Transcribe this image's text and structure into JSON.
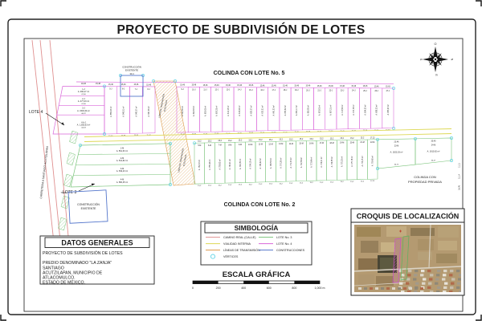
{
  "title": "PROYECTO DE SUBDIVISIÓN DE LOTES",
  "colors": {
    "magenta": "#d966d9",
    "green": "#7bc47b",
    "yellow": "#ddd855",
    "red_road": "#e09090",
    "orange": "#dd9a4a",
    "blue": "#5577cc",
    "cyan": "#66d5e6",
    "ink": "#1a1a1a"
  },
  "compass": {
    "top": "O",
    "right": "N",
    "bottom": "E",
    "left": "S"
  },
  "plan": {
    "colinda_top": "COLINDA CON LOTE No. 5",
    "colinda_bottom": "COLINDA CON LOTE No. 2",
    "colinda_right_1": "COLINDA CON",
    "colinda_right_2": "PROPIEDAD PRIVADA",
    "lote4_label": "LOTE 4",
    "lote3_label": "LOTE 3",
    "construction_line_1": "CONSTRUCCIÓN",
    "construction_line_2": "EXISTENTE",
    "road_label": "CARRETERA A SANTIAGO ACUTZILAPAN",
    "transmission_lines": [
      "LÍNEA DE TRANSMISIÓN",
      "ELÉCTRICA"
    ],
    "dim_74": "74,20",
    "dim_30": "30,4",
    "top_dims": [
      "18,26",
      "15,48"
    ],
    "right_dims": [
      "11,11",
      "11,14",
      "16,76"
    ],
    "j_left": [
      {
        "id": "1-J",
        "area": "A. 466,27 m²",
        "dim": "47,06"
      },
      {
        "id": "2-J",
        "area": "A. 477,03 m²",
        "dim": "47,06"
      },
      {
        "id": "3-J",
        "area": "A. 1503,34 m²",
        "dim": "46,97"
      },
      {
        "id": "4 A-J",
        "area": "A. 1,553,63 m²",
        "dim": "44,03"
      }
    ],
    "j_lots": [
      {
        "id": "5-J",
        "w": "15,46",
        "area": "A. 856,23 m²"
      },
      {
        "id": "6-J",
        "w": "15,46",
        "area": "A. 849,21 m²"
      },
      {
        "id": "7-J",
        "w": "15,46",
        "area": "A. 843,27 m²"
      },
      {
        "id": "8-J",
        "w": "15,46",
        "area": "A. 847,36 m²"
      },
      {
        "id": "9-J",
        "w": "15,46",
        "area": "A. 599,58 m²"
      },
      {
        "id": "10-J",
        "w": "15,46",
        "area": "A. 602,63 m²"
      },
      {
        "id": "11-J",
        "w": "15,46",
        "area": "A. 605,62 m²"
      },
      {
        "id": "12-J",
        "w": "15,46",
        "area": "A. 608,32 m²"
      },
      {
        "id": "13-J",
        "w": "15,46",
        "area": "A. 612,18 m²"
      },
      {
        "id": "14-J",
        "w": "15,46",
        "area": "A. 618,23 m²"
      },
      {
        "id": "15-J",
        "w": "15,46",
        "area": "A. 625,37 m²"
      },
      {
        "id": "16-J",
        "w": "15,46",
        "area": "A. 633,21 m²"
      },
      {
        "id": "17-J",
        "w": "15,46",
        "area": "A. 641,53 m²"
      },
      {
        "id": "18-J",
        "w": "15,46",
        "area": "A. 650,62 m²"
      },
      {
        "id": "19-J",
        "w": "15,46",
        "area": "A. 660,17 m²"
      },
      {
        "id": "20-J",
        "w": "15,46",
        "area": "A. 669,80 m²"
      },
      {
        "id": "21-J",
        "w": "15,46",
        "area": "A. 678,63 m²"
      },
      {
        "id": "22-J",
        "w": "15,46",
        "area": "A. 687,31 m²"
      },
      {
        "id": "23-J",
        "w": "15,46",
        "area": "A. 713,54 m²"
      },
      {
        "id": "24-J",
        "w": "15,46",
        "area": "A. 703,78 m²"
      },
      {
        "id": "25-J",
        "w": "15,46",
        "area": "A. 694,23 m²"
      },
      {
        "id": "26-J",
        "w": "15,46",
        "area": "A. 688,32 m²"
      },
      {
        "id": "27-J",
        "w": "15,63",
        "area": "A. 683,23 m²"
      }
    ],
    "m_left": [
      {
        "id": "1-M",
        "area": "A. 561,63 m²"
      },
      {
        "id": "2-M",
        "area": "A. 541,82 m²"
      },
      {
        "id": "3-M",
        "area": "A. 549,23 m²"
      },
      {
        "id": "4-M",
        "area": "A. 580,45 m²"
      }
    ],
    "m_lots": [
      {
        "id": "5-M",
        "w": "15,2",
        "area": "A. 752,18 m²"
      },
      {
        "id": "6-M",
        "w": "15,2",
        "area": "A. 755,43 m²"
      },
      {
        "id": "7-M",
        "w": "15,2",
        "area": "A. 758,62 m²"
      },
      {
        "id": "8-M",
        "w": "15,2",
        "area": "A. 760,21 m²"
      },
      {
        "id": "9-M",
        "w": "15,2",
        "area": "A. 762,35 m²"
      },
      {
        "id": "10-M",
        "w": "15,2",
        "area": "A. 764,18 m²"
      },
      {
        "id": "11-M",
        "w": "15,2",
        "area": "A. 766,42 m²"
      },
      {
        "id": "12-M",
        "w": "15,2",
        "area": "A. 768,53 m²"
      },
      {
        "id": "13-M",
        "w": "15,2",
        "area": "A. 770,28 m²"
      },
      {
        "id": "14-M",
        "w": "15,2",
        "area": "A. 771,63 m²"
      },
      {
        "id": "15-M",
        "w": "15,2",
        "area": "A. 772,84 m²"
      },
      {
        "id": "16-M",
        "w": "15,2",
        "area": "A. 773,64 m²"
      },
      {
        "id": "17-M",
        "w": "15,2",
        "area": "A. 774,21 m²"
      },
      {
        "id": "18-M",
        "w": "15,2",
        "area": "A. 774,85 m²"
      },
      {
        "id": "19-M",
        "w": "15,2",
        "area": "A. 775,32 m²"
      },
      {
        "id": "20-M",
        "w": "15,2",
        "area": "A. 775,78 m²"
      },
      {
        "id": "21-M",
        "w": "15,2",
        "area": "A. 776,15 m²"
      },
      {
        "id": "22-M",
        "w": "17,22",
        "area": "A. 776,42 m²"
      }
    ],
    "m_wide": [
      {
        "id": "23-M",
        "w": "23,46",
        "area": "A. 1623,03 m²",
        "b": "34,72"
      },
      {
        "id": "24-M",
        "w": "30,40",
        "area": "A. 1610,62 m²",
        "b": "34,27"
      }
    ]
  },
  "datos": {
    "header": "DATOS GENERALES",
    "lines": [
      "PROYECTO DE SUBDIVISIÓN DE LOTES",
      "",
      "PREDIO DENOMINADO \"LA ZANJA\"",
      "SANTIAGO",
      "ACUTZILAPAN, MUNICIPIO DE",
      "ATLACOMULCO.",
      "ESTADO DE MÉXICO."
    ]
  },
  "simbologia": {
    "header": "SIMBOLOGÍA",
    "left": [
      {
        "label": "CAMINO REAL (CALLE)",
        "color": "#e09090",
        "kind": "line"
      },
      {
        "label": "VIALIDAD INTERNA",
        "color": "#ddd855",
        "kind": "line"
      },
      {
        "label": "LÍNEAS DE TRANSMISIÓN",
        "color": "#dd9a4a",
        "kind": "line"
      },
      {
        "label": "VÉRTICES",
        "color": "#66d5e6",
        "kind": "circle"
      }
    ],
    "right": [
      {
        "label": "LOTE No. 3",
        "color": "#7bc47b",
        "kind": "line"
      },
      {
        "label": "LOTE No. 4",
        "color": "#d966d9",
        "kind": "line"
      },
      {
        "label": "CONSTRUCCIONES",
        "color": "#5577cc",
        "kind": "line"
      }
    ]
  },
  "escala": {
    "header": "ESCALA GRÁFICA",
    "ticks": [
      "0",
      "200",
      "400",
      "600",
      "800",
      "1,000 m"
    ]
  },
  "croquis": {
    "header": "CROQUIS DE LOCALIZACIÓN"
  }
}
